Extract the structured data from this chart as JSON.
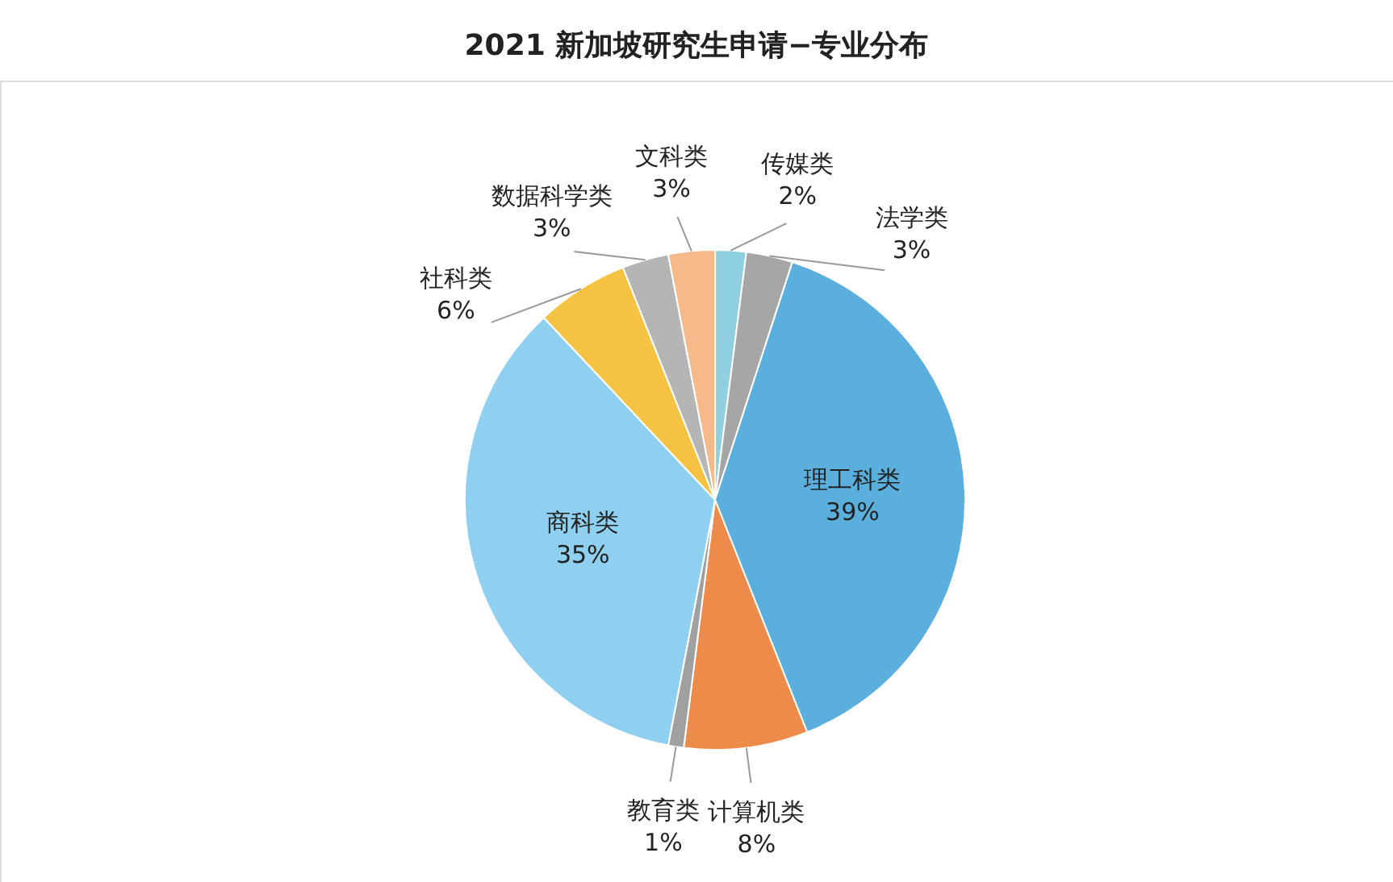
{
  "chart_data": {
    "type": "pie",
    "title": "2021 新加坡研究生申请−专业分布",
    "categories": [
      "传媒类",
      "法学类",
      "理工科类",
      "计算机类",
      "教育类",
      "商科类",
      "社科类",
      "数据科学类",
      "文科类"
    ],
    "values": [
      2,
      3,
      39,
      8,
      1,
      35,
      6,
      3,
      3
    ],
    "colors": [
      "#8ecfe0",
      "#a6a6a6",
      "#5aafdc",
      "#ee8a4a",
      "#a0a0a0",
      "#8fd0f0",
      "#f5c242",
      "#b5b5b5",
      "#f5b98a"
    ],
    "value_labels": [
      "2%",
      "3%",
      "39%",
      "8%",
      "1%",
      "35%",
      "6%",
      "3%",
      "3%"
    ]
  }
}
